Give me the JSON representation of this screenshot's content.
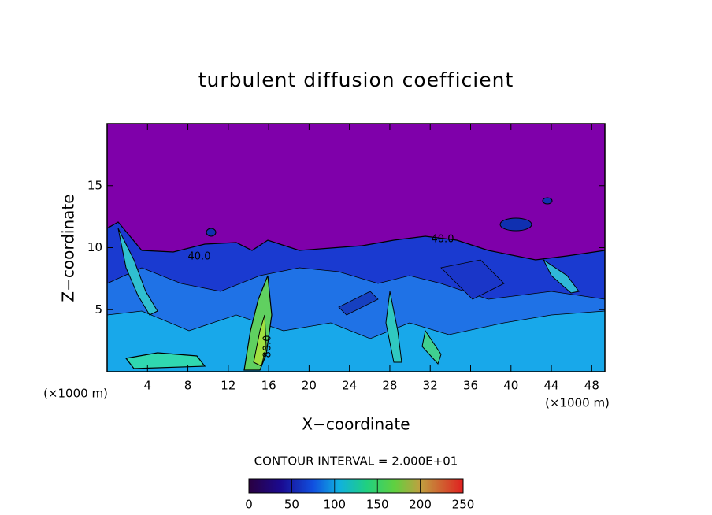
{
  "chart_data": {
    "type": "contour",
    "title": "turbulent diffusion coefficient",
    "xlabel": "X−coordinate",
    "ylabel": "Z−coordinate",
    "yunit": "(×1000 m)",
    "xunit": "(×1000 m)",
    "xlim": [
      0,
      49.3
    ],
    "ylim": [
      0,
      20
    ],
    "xticks": [
      4,
      8,
      12,
      16,
      20,
      24,
      28,
      32,
      36,
      40,
      44,
      48
    ],
    "yticks": [
      5,
      10,
      15
    ],
    "contour_interval": "CONTOUR INTERVAL = 2.000E+01",
    "contour_labels": [
      "40.0",
      "40.0",
      "80.0"
    ],
    "colorbar": {
      "lim": [
        0,
        250
      ],
      "ticks": [
        0,
        50,
        100,
        150,
        200,
        250
      ]
    }
  }
}
